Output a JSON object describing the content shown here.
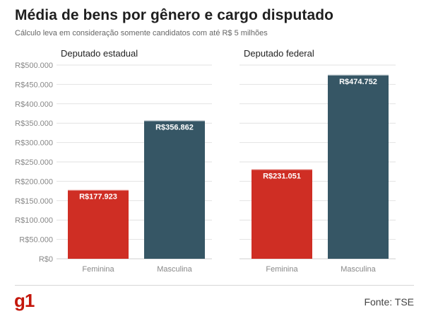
{
  "header": {
    "title": "Média de bens por gênero e cargo disputado",
    "subtitle": "Cálculo leva em consideração somente candidatos com até R$ 5 milhões"
  },
  "footer": {
    "logo": "g1",
    "source": "Fonte: TSE"
  },
  "colors": {
    "feminina": "#cf2e24",
    "masculina": "#365665",
    "grid": "#e2e2e2",
    "axis_text": "#888888"
  },
  "chart_data": [
    {
      "type": "bar",
      "title": "Deputado estadual",
      "categories": [
        "Feminina",
        "Masculina"
      ],
      "values": [
        177923,
        356862
      ],
      "data_labels": [
        "R$177.923",
        "R$356.862"
      ],
      "ylim": [
        0,
        500000
      ],
      "yticks": [
        0,
        50000,
        100000,
        150000,
        200000,
        250000,
        300000,
        350000,
        400000,
        450000,
        500000
      ],
      "ytick_labels": [
        "R$0",
        "R$50.000",
        "R$100.000",
        "R$150.000",
        "R$200.000",
        "R$250.000",
        "R$300.000",
        "R$350.000",
        "R$400.000",
        "R$450.000",
        "R$500.000"
      ],
      "grid": true
    },
    {
      "type": "bar",
      "title": "Deputado federal",
      "categories": [
        "Feminina",
        "Masculina"
      ],
      "values": [
        231051,
        474752
      ],
      "data_labels": [
        "R$231.051",
        "R$474.752"
      ],
      "ylim": [
        0,
        500000
      ],
      "grid": true
    }
  ]
}
